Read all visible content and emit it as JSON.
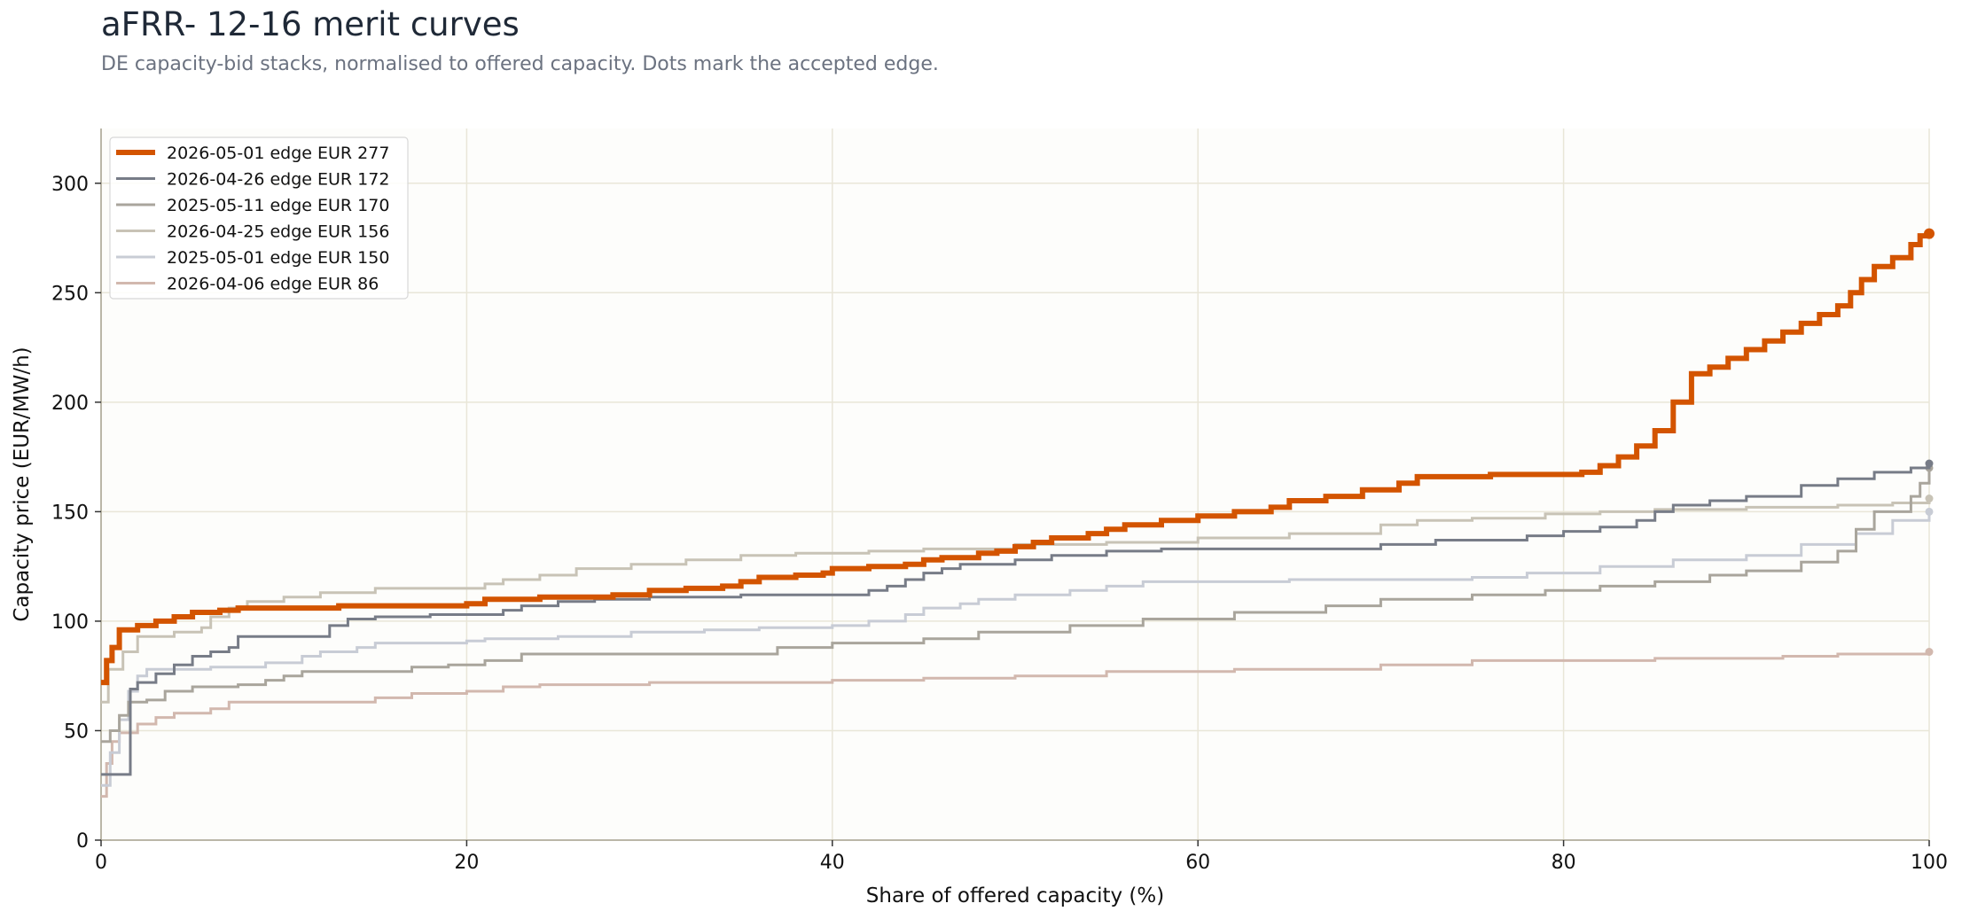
{
  "header": {
    "title": "aFRR- 12-16 merit curves",
    "subtitle": "DE capacity-bid stacks, normalised to offered capacity. Dots mark the accepted edge."
  },
  "chart_data": {
    "type": "line",
    "step": true,
    "xlabel": "Share of offered capacity (%)",
    "ylabel": "Capacity price (EUR/MW/h)",
    "xlim": [
      0,
      100
    ],
    "ylim": [
      0,
      325
    ],
    "xticks": [
      0,
      20,
      40,
      60,
      80,
      100
    ],
    "yticks": [
      0,
      50,
      100,
      150,
      200,
      250,
      300
    ],
    "grid": true,
    "legend_position": "top-left",
    "colors": {
      "grid": "#e9e6d8",
      "axis": "#a8a392",
      "plot_background": "#fdfdfb"
    },
    "series": [
      {
        "name": "2026-05-01 edge EUR 277",
        "color": "#d35400",
        "width": 6,
        "edge": 277,
        "points": [
          [
            0,
            72
          ],
          [
            0.3,
            82
          ],
          [
            0.6,
            88
          ],
          [
            1.0,
            96
          ],
          [
            2,
            98
          ],
          [
            3,
            100
          ],
          [
            4,
            102
          ],
          [
            5,
            104
          ],
          [
            6.5,
            105
          ],
          [
            7.5,
            106
          ],
          [
            10,
            106
          ],
          [
            13,
            107
          ],
          [
            19,
            107
          ],
          [
            20,
            108
          ],
          [
            21,
            110
          ],
          [
            24,
            111
          ],
          [
            26,
            111
          ],
          [
            28,
            112
          ],
          [
            30,
            114
          ],
          [
            32,
            115
          ],
          [
            34,
            116
          ],
          [
            35,
            118
          ],
          [
            36,
            120
          ],
          [
            38,
            121
          ],
          [
            39.5,
            122
          ],
          [
            40,
            124
          ],
          [
            42,
            125
          ],
          [
            44,
            126
          ],
          [
            45,
            128
          ],
          [
            46,
            129
          ],
          [
            48,
            131
          ],
          [
            49,
            132
          ],
          [
            50,
            134
          ],
          [
            51,
            136
          ],
          [
            52,
            138
          ],
          [
            54,
            140
          ],
          [
            55,
            142
          ],
          [
            56,
            144
          ],
          [
            58,
            146
          ],
          [
            60,
            148
          ],
          [
            62,
            150
          ],
          [
            64,
            152
          ],
          [
            65,
            155
          ],
          [
            67,
            157
          ],
          [
            69,
            160
          ],
          [
            71,
            163
          ],
          [
            72,
            166
          ],
          [
            76,
            167
          ],
          [
            81,
            168
          ],
          [
            82,
            171
          ],
          [
            83,
            175
          ],
          [
            84,
            180
          ],
          [
            85,
            187
          ],
          [
            86,
            200
          ],
          [
            87,
            213
          ],
          [
            88,
            216
          ],
          [
            89,
            220
          ],
          [
            90,
            224
          ],
          [
            91,
            228
          ],
          [
            92,
            232
          ],
          [
            93,
            236
          ],
          [
            94,
            240
          ],
          [
            95,
            244
          ],
          [
            95.7,
            250
          ],
          [
            96.3,
            256
          ],
          [
            97,
            262
          ],
          [
            98,
            266
          ],
          [
            99,
            272
          ],
          [
            99.5,
            276
          ],
          [
            100,
            277
          ]
        ]
      },
      {
        "name": "2026-04-26 edge EUR 172",
        "color": "#777c87",
        "width": 3,
        "edge": 172,
        "points": [
          [
            0,
            30
          ],
          [
            1.5,
            30
          ],
          [
            1.6,
            69
          ],
          [
            2,
            72
          ],
          [
            3,
            76
          ],
          [
            4,
            80
          ],
          [
            5,
            84
          ],
          [
            6,
            86
          ],
          [
            7,
            88
          ],
          [
            7.5,
            93
          ],
          [
            11.8,
            93
          ],
          [
            12.5,
            98
          ],
          [
            13.5,
            101
          ],
          [
            15,
            102
          ],
          [
            18,
            103
          ],
          [
            22,
            105
          ],
          [
            23,
            107
          ],
          [
            25,
            109
          ],
          [
            27,
            110
          ],
          [
            30,
            111
          ],
          [
            35,
            112
          ],
          [
            40.5,
            112
          ],
          [
            42,
            114
          ],
          [
            43,
            116
          ],
          [
            44,
            119
          ],
          [
            45,
            122
          ],
          [
            46,
            124
          ],
          [
            47,
            126
          ],
          [
            50,
            128
          ],
          [
            52,
            130
          ],
          [
            55,
            132
          ],
          [
            58,
            133
          ],
          [
            70,
            135
          ],
          [
            73,
            137
          ],
          [
            78,
            139
          ],
          [
            80,
            141
          ],
          [
            82,
            143
          ],
          [
            84,
            146
          ],
          [
            85,
            150
          ],
          [
            86,
            153
          ],
          [
            88,
            155
          ],
          [
            90,
            157
          ],
          [
            93,
            162
          ],
          [
            95,
            165
          ],
          [
            97,
            168
          ],
          [
            99,
            170
          ],
          [
            100,
            172
          ]
        ]
      },
      {
        "name": "2025-05-11 edge EUR 170",
        "color": "#a9a59c",
        "width": 3,
        "edge": 170,
        "points": [
          [
            0,
            45
          ],
          [
            0.5,
            50
          ],
          [
            1,
            57
          ],
          [
            1.5,
            63
          ],
          [
            2.5,
            64
          ],
          [
            3.5,
            68
          ],
          [
            5,
            70
          ],
          [
            7.5,
            71
          ],
          [
            9,
            73
          ],
          [
            10,
            75
          ],
          [
            11,
            77
          ],
          [
            16,
            77
          ],
          [
            17,
            79
          ],
          [
            19,
            80
          ],
          [
            21,
            82
          ],
          [
            23,
            85
          ],
          [
            35,
            85
          ],
          [
            37,
            88
          ],
          [
            40,
            90
          ],
          [
            45,
            92
          ],
          [
            48,
            95
          ],
          [
            53,
            98
          ],
          [
            57,
            101
          ],
          [
            62,
            104
          ],
          [
            67,
            107
          ],
          [
            70,
            110
          ],
          [
            75,
            112
          ],
          [
            79,
            114
          ],
          [
            82,
            116
          ],
          [
            85,
            118
          ],
          [
            88,
            121
          ],
          [
            90,
            123
          ],
          [
            93,
            127
          ],
          [
            95,
            132
          ],
          [
            96,
            142
          ],
          [
            97,
            150
          ],
          [
            99,
            157
          ],
          [
            99.5,
            163
          ],
          [
            100,
            170
          ]
        ]
      },
      {
        "name": "2026-04-25 edge EUR 156",
        "color": "#c8c3b6",
        "width": 3,
        "edge": 156,
        "points": [
          [
            0,
            63
          ],
          [
            0.4,
            78
          ],
          [
            1.2,
            86
          ],
          [
            2,
            93
          ],
          [
            4,
            95
          ],
          [
            5.5,
            97
          ],
          [
            6,
            102
          ],
          [
            7,
            106
          ],
          [
            8,
            109
          ],
          [
            10,
            111
          ],
          [
            12,
            113
          ],
          [
            15,
            115
          ],
          [
            20,
            115
          ],
          [
            21,
            117
          ],
          [
            22,
            119
          ],
          [
            24,
            121
          ],
          [
            26,
            124
          ],
          [
            29,
            126
          ],
          [
            32,
            128
          ],
          [
            35,
            130
          ],
          [
            38,
            131
          ],
          [
            42,
            132
          ],
          [
            45,
            133
          ],
          [
            50,
            135
          ],
          [
            55,
            136
          ],
          [
            60,
            138
          ],
          [
            65,
            140
          ],
          [
            70,
            144
          ],
          [
            72,
            146
          ],
          [
            75,
            147
          ],
          [
            79,
            149
          ],
          [
            82,
            150
          ],
          [
            85,
            151
          ],
          [
            90,
            152
          ],
          [
            95,
            153
          ],
          [
            98,
            154
          ],
          [
            100,
            156
          ]
        ]
      },
      {
        "name": "2025-05-01 edge EUR 150",
        "color": "#c8ccd5",
        "width": 3,
        "edge": 150,
        "points": [
          [
            0,
            25
          ],
          [
            0.5,
            40
          ],
          [
            1.0,
            55
          ],
          [
            1.5,
            68
          ],
          [
            2.0,
            75
          ],
          [
            2.5,
            78
          ],
          [
            6,
            79
          ],
          [
            9,
            81
          ],
          [
            11,
            84
          ],
          [
            12,
            86
          ],
          [
            14,
            88
          ],
          [
            15,
            90
          ],
          [
            20,
            91
          ],
          [
            21,
            92
          ],
          [
            25,
            93
          ],
          [
            29,
            95
          ],
          [
            33,
            96
          ],
          [
            36,
            97
          ],
          [
            40,
            98
          ],
          [
            42,
            100
          ],
          [
            44,
            103
          ],
          [
            45,
            106
          ],
          [
            47,
            108
          ],
          [
            48,
            110
          ],
          [
            50,
            112
          ],
          [
            53,
            114
          ],
          [
            55,
            116
          ],
          [
            57,
            118
          ],
          [
            65,
            119
          ],
          [
            75,
            120
          ],
          [
            78,
            122
          ],
          [
            82,
            125
          ],
          [
            86,
            128
          ],
          [
            90,
            130
          ],
          [
            93,
            135
          ],
          [
            96,
            140
          ],
          [
            98,
            146
          ],
          [
            100,
            150
          ]
        ]
      },
      {
        "name": "2026-04-06 edge EUR 86",
        "color": "#d2b8ae",
        "width": 3,
        "edge": 86,
        "points": [
          [
            0,
            20
          ],
          [
            0.3,
            35
          ],
          [
            0.6,
            45
          ],
          [
            1,
            49
          ],
          [
            2,
            53
          ],
          [
            3,
            56
          ],
          [
            4,
            58
          ],
          [
            6,
            60
          ],
          [
            7,
            63
          ],
          [
            14,
            63
          ],
          [
            15,
            65
          ],
          [
            17,
            67
          ],
          [
            20,
            68
          ],
          [
            22,
            70
          ],
          [
            24,
            71
          ],
          [
            30,
            72
          ],
          [
            40,
            73
          ],
          [
            45,
            74
          ],
          [
            50,
            75
          ],
          [
            55,
            77
          ],
          [
            62,
            78
          ],
          [
            70,
            80
          ],
          [
            75,
            82
          ],
          [
            85,
            83
          ],
          [
            92,
            84
          ],
          [
            95,
            85
          ],
          [
            100,
            86
          ]
        ]
      }
    ]
  }
}
